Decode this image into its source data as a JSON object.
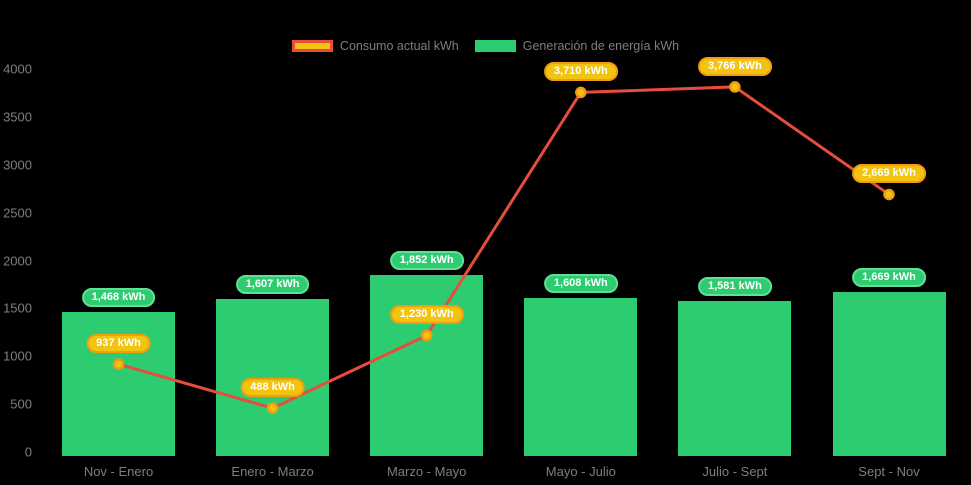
{
  "chart_data": {
    "type": "combo-bar-line",
    "background": "#000000",
    "axis_text_color": "#7e7e7e",
    "grid": false,
    "legend_position": "top",
    "categories": [
      "Nov - Enero",
      "Enero - Marzo",
      "Marzo - Mayo",
      "Mayo - Julio",
      "Julio - Sept",
      "Sept - Nov"
    ],
    "y_axis": {
      "ticks": [
        "0",
        "500",
        "1000",
        "1500",
        "2000",
        "2500",
        "3000",
        "3500",
        "4000"
      ],
      "ylim": [
        0,
        4000
      ]
    },
    "series": [
      {
        "name": "Consumo actual kWh",
        "type": "line",
        "values": [
          937,
          488,
          1230,
          3710,
          3766,
          2669
        ],
        "labels": [
          "937 kWh",
          "488 kWh",
          "1,230 kWh",
          "3,710 kWh",
          "3,766 kWh",
          "2,669 kWh"
        ],
        "line_color": "#e74c3c",
        "marker_fill": "#f1c40f",
        "marker_stroke": "#f39c12",
        "label_bg": "#f1c40f",
        "label_border": "#f39c12"
      },
      {
        "name": "Generación de energía kWh",
        "type": "bar",
        "values": [
          1468,
          1607,
          1852,
          1608,
          1581,
          1669
        ],
        "labels": [
          "1,468 kWh",
          "1,607 kWh",
          "1,852 kWh",
          "1,608 kWh",
          "1,581 kWh",
          "1,669 kWh"
        ],
        "bar_color": "#2ecc71",
        "label_bg": "#2ecc71",
        "label_border": "#5fe098"
      }
    ]
  }
}
